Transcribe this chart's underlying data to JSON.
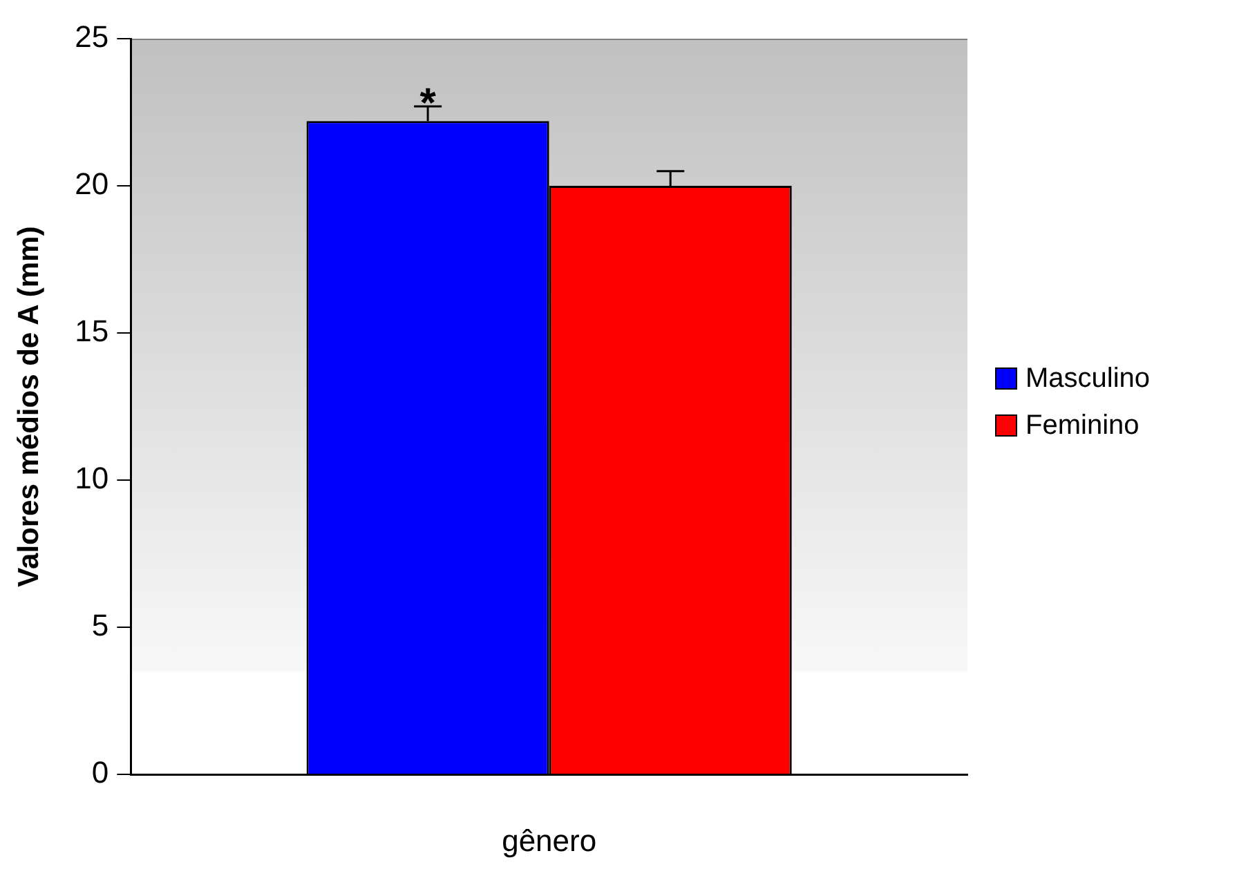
{
  "chart_data": {
    "type": "bar",
    "categories": [
      null
    ],
    "xlabel": "gênero",
    "ylabel": "Valores médios de A (mm)",
    "series": [
      {
        "name": "Masculino",
        "color": "#0000ff",
        "values": [
          22.2
        ],
        "errors": [
          0.5
        ]
      },
      {
        "name": "Feminino",
        "color": "#ff0000",
        "values": [
          20.0
        ],
        "errors": [
          0.5
        ]
      }
    ],
    "ylim": [
      0,
      25
    ],
    "yticks": [
      0,
      5,
      10,
      15,
      20,
      25
    ],
    "grid": false,
    "legend": "right",
    "annotations": [
      "*"
    ]
  }
}
